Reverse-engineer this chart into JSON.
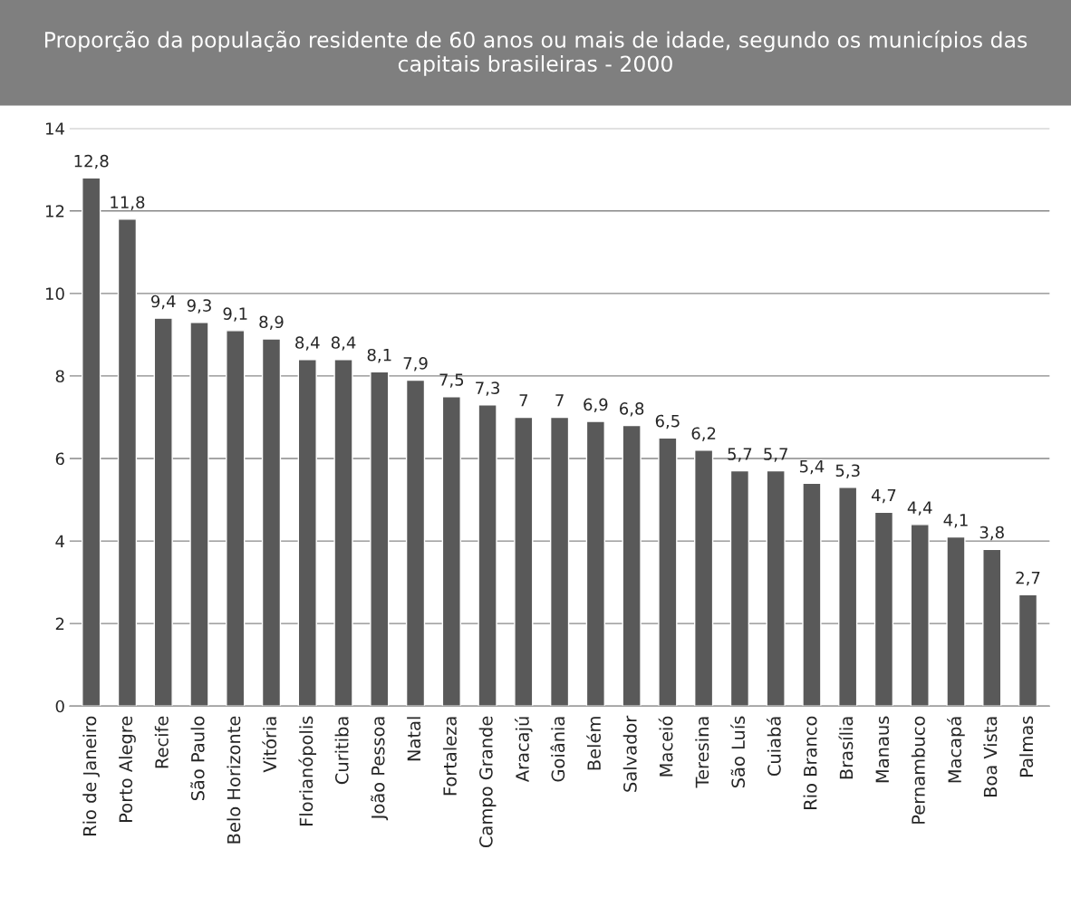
{
  "chart_data": {
    "type": "bar",
    "title": "Proporção da população residente de 60 anos ou mais de idade, segundo os municípios das capitais brasileiras - 2000",
    "categories": [
      "Rio de Janeiro",
      "Porto Alegre",
      "Recife",
      "São Paulo",
      "Belo Horizonte",
      "Vitória",
      "Florianópolis",
      "Curitiba",
      "João Pessoa",
      "Natal",
      "Fortaleza",
      "Campo Grande",
      "Aracajú",
      "Goiânia",
      "Belém",
      "Salvador",
      "Maceió",
      "Teresina",
      "São Luís",
      "Cuiabá",
      "Rio Branco",
      "Brasília",
      "Manaus",
      "Pernambuco",
      "Macapá",
      "Boa Vista",
      "Palmas"
    ],
    "values": [
      12.8,
      11.8,
      9.4,
      9.3,
      9.1,
      8.9,
      8.4,
      8.4,
      8.1,
      7.9,
      7.5,
      7.3,
      7,
      7,
      6.9,
      6.8,
      6.5,
      6.2,
      5.7,
      5.7,
      5.4,
      5.3,
      4.7,
      4.4,
      4.1,
      3.8,
      2.7
    ],
    "value_labels": [
      "12,8",
      "11,8",
      "9,4",
      "9,3",
      "9,1",
      "8,9",
      "8,4",
      "8,4",
      "8,1",
      "7,9",
      "7,5",
      "7,3",
      "7",
      "7",
      "6,9",
      "6,8",
      "6,5",
      "6,2",
      "5,7",
      "5,7",
      "5,4",
      "5,3",
      "4,7",
      "4,4",
      "4,1",
      "3,8",
      "2,7"
    ],
    "color": "#595959",
    "ylim": [
      0,
      14
    ],
    "yticks": [
      0,
      2,
      4,
      6,
      8,
      10,
      12,
      14
    ],
    "grid": "y",
    "legend": false
  }
}
